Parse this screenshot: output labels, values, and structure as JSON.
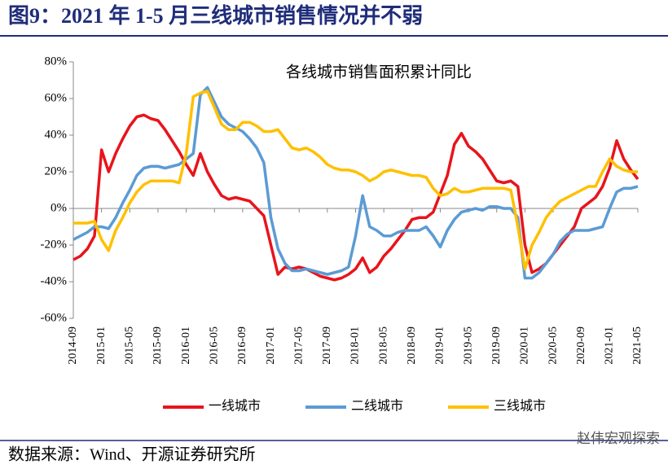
{
  "chart_data": {
    "type": "line",
    "title": "图9：2021 年 1-5 月三线城市销售情况并不弱",
    "subtitle": "各线城市销售面积累计同比",
    "source": "数据来源：Wind、开源证券研究所",
    "watermark": "赵伟宏观探索",
    "categories": [
      "2014-09",
      null,
      null,
      null,
      "2015-01",
      null,
      null,
      null,
      "2015-05",
      null,
      null,
      null,
      "2015-09",
      null,
      null,
      null,
      "2016-01",
      null,
      null,
      null,
      "2016-05",
      null,
      null,
      null,
      "2016-09",
      null,
      null,
      null,
      "2017-01",
      null,
      null,
      null,
      "2017-05",
      null,
      null,
      null,
      "2017-09",
      null,
      null,
      null,
      "2018-01",
      null,
      null,
      null,
      "2018-05",
      null,
      null,
      null,
      "2018-09",
      null,
      null,
      null,
      "2019-01",
      null,
      null,
      null,
      "2019-05",
      null,
      null,
      null,
      "2019-09",
      null,
      null,
      null,
      "2020-01",
      null,
      null,
      null,
      "2020-05",
      null,
      null,
      null,
      "2020-09",
      null,
      null,
      null,
      "2021-01",
      null,
      null,
      null,
      "2021-05"
    ],
    "series": [
      {
        "name": "一线城市",
        "color": "#e8141c",
        "values": [
          -28,
          -26,
          -22,
          -15,
          32,
          20,
          30,
          38,
          45,
          50,
          51,
          49,
          48,
          43,
          37,
          31,
          24,
          18,
          30,
          20,
          13,
          7,
          5,
          6,
          5,
          4,
          0,
          -4,
          -20,
          -36,
          -32,
          -33,
          -32,
          -33,
          -35,
          -37,
          -38,
          -39,
          -38,
          -36,
          -33,
          -27,
          -35,
          -32,
          -26,
          -22,
          -17,
          -12,
          -6,
          -5,
          -5,
          -2,
          8,
          18,
          35,
          41,
          34,
          31,
          27,
          21,
          15,
          14,
          15,
          12,
          -20,
          -35,
          -33,
          -30,
          -25,
          -20,
          -15,
          -10,
          0,
          3,
          6,
          12,
          22,
          37,
          27,
          21,
          16
        ]
      },
      {
        "name": "二线城市",
        "color": "#5b9bd5",
        "values": [
          -17,
          -15,
          -13,
          -10,
          -10,
          -11,
          -5,
          3,
          10,
          18,
          22,
          23,
          23,
          22,
          23,
          24,
          27,
          30,
          62,
          66,
          58,
          50,
          46,
          44,
          42,
          38,
          33,
          25,
          -5,
          -22,
          -30,
          -34,
          -34,
          -33,
          -34,
          -35,
          -36,
          -35,
          -34,
          -32,
          -15,
          7,
          -10,
          -12,
          -15,
          -15,
          -13,
          -12,
          -12,
          -12,
          -10,
          -15,
          -21,
          -12,
          -6,
          -2,
          -1,
          0,
          -1,
          1,
          1,
          0,
          0,
          -5,
          -38,
          -38,
          -35,
          -30,
          -25,
          -18,
          -14,
          -12,
          -12,
          -12,
          -11,
          -10,
          0,
          9,
          11,
          11,
          12
        ]
      },
      {
        "name": "三线城市",
        "color": "#ffc000",
        "values": [
          -8,
          -8,
          -8,
          -7,
          -17,
          -23,
          -12,
          -5,
          3,
          9,
          13,
          15,
          15,
          15,
          15,
          14,
          30,
          61,
          63,
          64,
          55,
          46,
          43,
          43,
          47,
          47,
          45,
          42,
          42,
          43,
          38,
          33,
          32,
          33,
          31,
          28,
          24,
          22,
          21,
          21,
          20,
          18,
          15,
          17,
          20,
          21,
          20,
          19,
          18,
          18,
          17,
          11,
          7,
          8,
          11,
          9,
          9,
          10,
          11,
          11,
          11,
          11,
          10,
          -10,
          -33,
          -20,
          -13,
          -5,
          0,
          4,
          6,
          8,
          10,
          12,
          12,
          20,
          27,
          23,
          21,
          20,
          20
        ]
      }
    ],
    "ylim": [
      -60,
      80
    ],
    "yticks": [
      {
        "value": -60,
        "label": "-60%"
      },
      {
        "value": -40,
        "label": "-40%"
      },
      {
        "value": -20,
        "label": "-20%"
      },
      {
        "value": 0,
        "label": "0%"
      },
      {
        "value": 20,
        "label": "20%"
      },
      {
        "value": 40,
        "label": "40%"
      },
      {
        "value": 60,
        "label": "60%"
      },
      {
        "value": 80,
        "label": "80%"
      }
    ]
  }
}
